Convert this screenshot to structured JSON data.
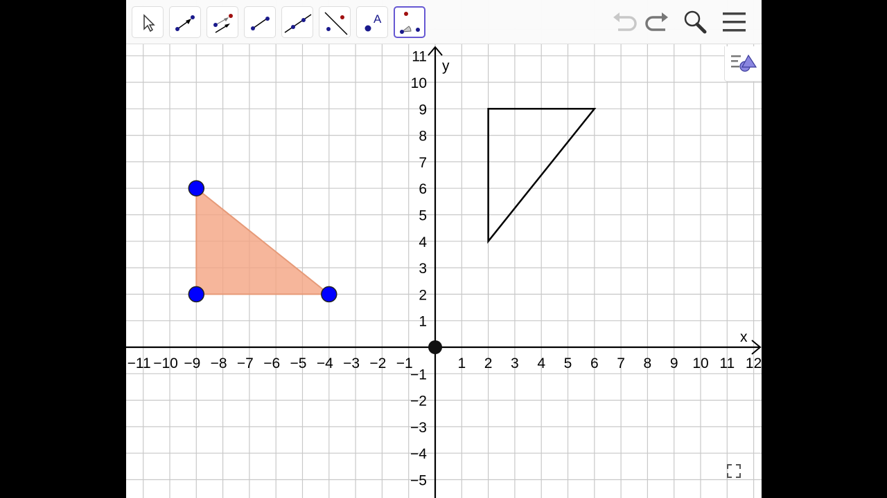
{
  "toolbar": {
    "tools": [
      {
        "name": "move",
        "icon": "arrow-cursor-icon"
      },
      {
        "name": "vector",
        "icon": "vector-icon"
      },
      {
        "name": "vector-from-point",
        "icon": "vector-from-point-icon"
      },
      {
        "name": "segment",
        "icon": "segment-icon"
      },
      {
        "name": "line",
        "icon": "line-icon"
      },
      {
        "name": "perpendicular-line",
        "icon": "perpendicular-line-icon"
      },
      {
        "name": "text",
        "icon": "point-text-icon",
        "glyph": "A"
      },
      {
        "name": "angle",
        "icon": "angle-icon",
        "glyph": "α",
        "selected": true
      }
    ],
    "right_icons": [
      "undo-icon",
      "redo-icon",
      "search-icon",
      "menu-icon"
    ]
  },
  "graphics": {
    "axis_labels": {
      "x": "x",
      "y": "y"
    },
    "x_range": [
      -11,
      12
    ],
    "y_range": [
      -5,
      11
    ],
    "grid": true,
    "x_ticks": [
      "−11",
      "−10",
      "−9",
      "−8",
      "−7",
      "−6",
      "−5",
      "−4",
      "−3",
      "−2",
      "−1",
      "1",
      "2",
      "3",
      "4",
      "5",
      "6",
      "7",
      "8",
      "9",
      "10",
      "11",
      "12"
    ],
    "y_ticks": [
      "−5",
      "−4",
      "−3",
      "−2",
      "−1",
      "1",
      "2",
      "3",
      "4",
      "5",
      "6",
      "7",
      "8",
      "9",
      "10",
      "11"
    ],
    "filled_triangle": {
      "vertices": [
        [
          -9,
          6
        ],
        [
          -9,
          2
        ],
        [
          -4,
          2
        ]
      ],
      "fill": "#f4a482",
      "point_color": "#0000ff"
    },
    "outline_triangle": {
      "vertices": [
        [
          2,
          9
        ],
        [
          6,
          9
        ],
        [
          2,
          4
        ]
      ],
      "stroke": "#000000"
    },
    "origin_point": [
      0,
      0
    ]
  }
}
